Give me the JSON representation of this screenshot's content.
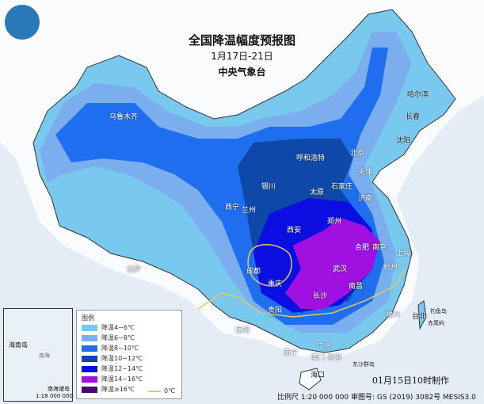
{
  "title": "全国降温幅度预报图",
  "date_range": "1月17日-21日",
  "agency": "中央气象台",
  "logo": "中央气象台",
  "cities": [
    "乌鲁木齐",
    "拉萨",
    "西宁",
    "兰州",
    "银川",
    "呼和浩特",
    "北京",
    "天津",
    "石家庄",
    "太原",
    "济南",
    "郑州",
    "西安",
    "成都",
    "重庆",
    "贵阳",
    "昆明",
    "南宁",
    "广州",
    "澳门",
    "香港",
    "海口",
    "长沙",
    "南昌",
    "武汉",
    "合肥",
    "南京",
    "上海",
    "杭州",
    "福州",
    "台北",
    "沈阳",
    "长春",
    "哈尔滨",
    "钓鱼岛",
    "赤尾屿",
    "东沙群岛"
  ],
  "legend": {
    "title": "图例",
    "items": [
      {
        "label": "降温4~6℃",
        "color": "#79c8ee"
      },
      {
        "label": "降温6~8℃",
        "color": "#7aaeef"
      },
      {
        "label": "降温8~10℃",
        "color": "#1f6ef0"
      },
      {
        "label": "降温10~12℃",
        "color": "#0e48a8"
      },
      {
        "label": "降温12~14℃",
        "color": "#0a0ee0"
      },
      {
        "label": "降温14~16℃",
        "color": "#a010e0"
      },
      {
        "label": "降温≥16℃",
        "color": "#4a0a70"
      }
    ],
    "zero_line": {
      "label": "0℃",
      "color": "#e8c860"
    }
  },
  "inset": {
    "island": "海南岛",
    "sea": "南海",
    "label": "南海诸岛",
    "scale": "1:18 000 000"
  },
  "made": "01月15日10时制作",
  "footer": "比例尺 1:20 000 000  审图号: GS (2019) 3082号 MESIS3.0"
}
